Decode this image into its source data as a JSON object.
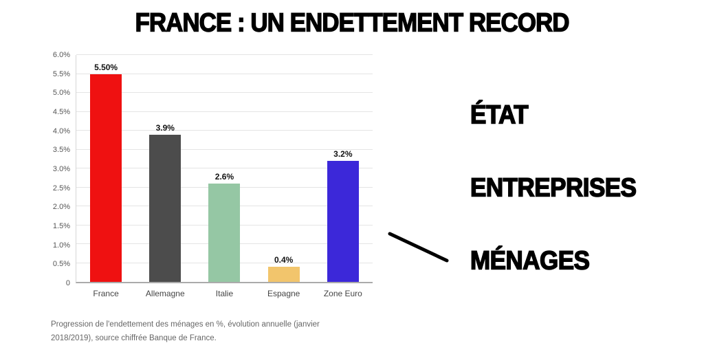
{
  "title": "FRANCE : UN ENDETTEMENT RECORD",
  "chart_data": {
    "type": "bar",
    "categories": [
      "France",
      "Allemagne",
      "Italie",
      "Espagne",
      "Zone Euro"
    ],
    "values": [
      5.5,
      3.9,
      2.6,
      0.4,
      3.2
    ],
    "value_labels": [
      "5.50%",
      "3.9%",
      "2.6%",
      "0.4%",
      "3.2%"
    ],
    "bar_colors": [
      "#ef1111",
      "#4c4c4c",
      "#95c7a4",
      "#f2c56c",
      "#3c28d9"
    ],
    "y_ticks": [
      "0",
      "0.5%",
      "1.0%",
      "1.5%",
      "2.0%",
      "2.5%",
      "3.0%",
      "3.5%",
      "4.0%",
      "4.5%",
      "5.0%",
      "5.5%",
      "6.0%"
    ],
    "y_tick_values": [
      0,
      0.5,
      1,
      1.5,
      2,
      2.5,
      3,
      3.5,
      4,
      4.5,
      5,
      5.5,
      6
    ],
    "ylim": [
      0,
      6
    ],
    "grid": true,
    "legend": "none",
    "xlabel": "",
    "ylabel": ""
  },
  "annotations": {
    "labels": [
      "ÉTAT",
      "ENTREPRISES",
      "MÉNAGES"
    ]
  },
  "caption": "Progression de l'endettement des ménages en %, évolution annuelle (janvier 2018/2019), source chiffrée Banque de France."
}
